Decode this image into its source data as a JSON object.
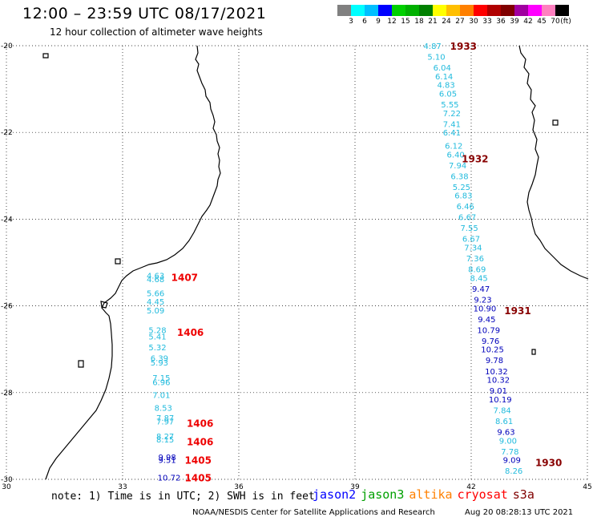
{
  "header": {
    "title": "12:00 – 23:59 UTC 08/17/2021",
    "subtitle": "12 hour collection of altimeter wave heights"
  },
  "legend": {
    "colors": [
      "#808080",
      "#00ffff",
      "#00bfff",
      "#0000ff",
      "#00d000",
      "#00b000",
      "#008000",
      "#ffff00",
      "#ffbf00",
      "#ff8000",
      "#ff0000",
      "#b00000",
      "#800000",
      "#a000a0",
      "#ff00ff",
      "#ff80c0",
      "#000000"
    ],
    "labels": [
      "3",
      "6",
      "9",
      "12",
      "15",
      "18",
      "21",
      "24",
      "27",
      "30",
      "33",
      "36",
      "39",
      "42",
      "45",
      "70",
      "(ft)"
    ]
  },
  "axes": {
    "lat_labels": [
      "-20",
      "-22",
      "-24",
      "-26",
      "-28",
      "-30"
    ],
    "lon_labels": [
      "30",
      "33",
      "36",
      "39",
      "42",
      "45"
    ]
  },
  "colors": {
    "light_blue": "#22bbdd",
    "dark_blue": "#0000bb",
    "red": "#ee0000",
    "dark_red": "#880000"
  },
  "observations": [
    {
      "v": "4.87",
      "c": "light_blue",
      "lon": 41.0,
      "lat": -20.0
    },
    {
      "v": "5.10",
      "c": "light_blue",
      "lon": 41.1,
      "lat": -20.25
    },
    {
      "v": "6.04",
      "c": "light_blue",
      "lon": 41.25,
      "lat": -20.5
    },
    {
      "v": "6.14",
      "c": "light_blue",
      "lon": 41.3,
      "lat": -20.7
    },
    {
      "v": "4.83",
      "c": "light_blue",
      "lon": 41.35,
      "lat": -20.9
    },
    {
      "v": "6.05",
      "c": "light_blue",
      "lon": 41.4,
      "lat": -21.1
    },
    {
      "v": "5.55",
      "c": "light_blue",
      "lon": 41.45,
      "lat": -21.35
    },
    {
      "v": "7.22",
      "c": "light_blue",
      "lon": 41.5,
      "lat": -21.55
    },
    {
      "v": "7.41",
      "c": "light_blue",
      "lon": 41.5,
      "lat": -21.8
    },
    {
      "v": "6.41",
      "c": "light_blue",
      "lon": 41.5,
      "lat": -22.0
    },
    {
      "v": "6.12",
      "c": "light_blue",
      "lon": 41.55,
      "lat": -22.3
    },
    {
      "v": "6.40",
      "c": "light_blue",
      "lon": 41.6,
      "lat": -22.5
    },
    {
      "v": "7.94",
      "c": "light_blue",
      "lon": 41.65,
      "lat": -22.75
    },
    {
      "v": "6.38",
      "c": "light_blue",
      "lon": 41.7,
      "lat": -23.0
    },
    {
      "v": "5.25",
      "c": "light_blue",
      "lon": 41.75,
      "lat": -23.25
    },
    {
      "v": "6.83",
      "c": "light_blue",
      "lon": 41.8,
      "lat": -23.45
    },
    {
      "v": "6.46",
      "c": "light_blue",
      "lon": 41.85,
      "lat": -23.7
    },
    {
      "v": "6.67",
      "c": "light_blue",
      "lon": 41.9,
      "lat": -23.95
    },
    {
      "v": "7.55",
      "c": "light_blue",
      "lon": 41.95,
      "lat": -24.2
    },
    {
      "v": "6.67",
      "c": "light_blue",
      "lon": 42.0,
      "lat": -24.45
    },
    {
      "v": "7.34",
      "c": "light_blue",
      "lon": 42.05,
      "lat": -24.65
    },
    {
      "v": "7.36",
      "c": "light_blue",
      "lon": 42.1,
      "lat": -24.9
    },
    {
      "v": "8.69",
      "c": "light_blue",
      "lon": 42.15,
      "lat": -25.15
    },
    {
      "v": "8.45",
      "c": "light_blue",
      "lon": 42.2,
      "lat": -25.35
    },
    {
      "v": "9.47",
      "c": "dark_blue",
      "lon": 42.25,
      "lat": -25.6
    },
    {
      "v": "9.23",
      "c": "dark_blue",
      "lon": 42.3,
      "lat": -25.85
    },
    {
      "v": "10.90",
      "c": "dark_blue",
      "lon": 42.35,
      "lat": -26.05
    },
    {
      "v": "9.45",
      "c": "dark_blue",
      "lon": 42.4,
      "lat": -26.3
    },
    {
      "v": "10.79",
      "c": "dark_blue",
      "lon": 42.45,
      "lat": -26.55
    },
    {
      "v": "9.76",
      "c": "dark_blue",
      "lon": 42.5,
      "lat": -26.8
    },
    {
      "v": "10.25",
      "c": "dark_blue",
      "lon": 42.55,
      "lat": -27.0
    },
    {
      "v": "9.78",
      "c": "dark_blue",
      "lon": 42.6,
      "lat": -27.25
    },
    {
      "v": "10.32",
      "c": "dark_blue",
      "lon": 42.65,
      "lat": -27.5
    },
    {
      "v": "10.32",
      "c": "dark_blue",
      "lon": 42.7,
      "lat": -27.7
    },
    {
      "v": "9.01",
      "c": "dark_blue",
      "lon": 42.7,
      "lat": -27.95
    },
    {
      "v": "10.19",
      "c": "dark_blue",
      "lon": 42.75,
      "lat": -28.15
    },
    {
      "v": "7.84",
      "c": "light_blue",
      "lon": 42.8,
      "lat": -28.4
    },
    {
      "v": "8.61",
      "c": "light_blue",
      "lon": 42.85,
      "lat": -28.65
    },
    {
      "v": "9.63",
      "c": "dark_blue",
      "lon": 42.9,
      "lat": -28.9
    },
    {
      "v": "9.00",
      "c": "light_blue",
      "lon": 42.95,
      "lat": -29.1
    },
    {
      "v": "7.78",
      "c": "light_blue",
      "lon": 43.0,
      "lat": -29.35
    },
    {
      "v": "9.09",
      "c": "dark_blue",
      "lon": 43.05,
      "lat": -29.55
    },
    {
      "v": "8.26",
      "c": "light_blue",
      "lon": 43.1,
      "lat": -29.8
    },
    {
      "v": "4.63",
      "c": "light_blue",
      "lon": 33.85,
      "lat": -25.3
    },
    {
      "v": "4.68",
      "c": "light_blue",
      "lon": 33.85,
      "lat": -25.38
    },
    {
      "v": "5.66",
      "c": "light_blue",
      "lon": 33.85,
      "lat": -25.7
    },
    {
      "v": "4.45",
      "c": "light_blue",
      "lon": 33.85,
      "lat": -25.9
    },
    {
      "v": "5.09",
      "c": "light_blue",
      "lon": 33.85,
      "lat": -26.1
    },
    {
      "v": "5.28",
      "c": "light_blue",
      "lon": 33.9,
      "lat": -26.55
    },
    {
      "v": "5.41",
      "c": "light_blue",
      "lon": 33.9,
      "lat": -26.7
    },
    {
      "v": "5.32",
      "c": "light_blue",
      "lon": 33.9,
      "lat": -26.95
    },
    {
      "v": "6.39",
      "c": "light_blue",
      "lon": 33.95,
      "lat": -27.2
    },
    {
      "v": "5.93",
      "c": "light_blue",
      "lon": 33.95,
      "lat": -27.3
    },
    {
      "v": "7.15",
      "c": "light_blue",
      "lon": 34.0,
      "lat": -27.65
    },
    {
      "v": "6.96",
      "c": "light_blue",
      "lon": 34.0,
      "lat": -27.75
    },
    {
      "v": "7.01",
      "c": "light_blue",
      "lon": 34.0,
      "lat": -28.05
    },
    {
      "v": "8.53",
      "c": "light_blue",
      "lon": 34.05,
      "lat": -28.35
    },
    {
      "v": "7.87",
      "c": "light_blue",
      "lon": 34.1,
      "lat": -28.58
    },
    {
      "v": "7.97",
      "c": "light_blue",
      "lon": 34.1,
      "lat": -28.66
    },
    {
      "v": "8.27",
      "c": "light_blue",
      "lon": 34.1,
      "lat": -29.0
    },
    {
      "v": "8.15",
      "c": "light_blue",
      "lon": 34.1,
      "lat": -29.08
    },
    {
      "v": "9.98",
      "c": "dark_blue",
      "lon": 34.15,
      "lat": -29.48
    },
    {
      "v": "9.51",
      "c": "dark_blue",
      "lon": 34.15,
      "lat": -29.55
    },
    {
      "v": "10.72",
      "c": "dark_blue",
      "lon": 34.2,
      "lat": -29.95
    }
  ],
  "pass_times": [
    {
      "t": "1933",
      "c": "dark_red",
      "lon": 41.8,
      "lat": -20.0
    },
    {
      "t": "1932",
      "c": "dark_red",
      "lon": 42.1,
      "lat": -22.6
    },
    {
      "t": "1931",
      "c": "dark_red",
      "lon": 43.2,
      "lat": -26.1
    },
    {
      "t": "1930",
      "c": "dark_red",
      "lon": 44.0,
      "lat": -29.6
    },
    {
      "t": "1407",
      "c": "red",
      "lon": 34.6,
      "lat": -25.33
    },
    {
      "t": "1406",
      "c": "red",
      "lon": 34.75,
      "lat": -26.6
    },
    {
      "t": "1406",
      "c": "red",
      "lon": 35.0,
      "lat": -28.7
    },
    {
      "t": "1406",
      "c": "red",
      "lon": 35.0,
      "lat": -29.12
    },
    {
      "t": "1405",
      "c": "red",
      "lon": 34.95,
      "lat": -29.55
    },
    {
      "t": "1405",
      "c": "red",
      "lon": 34.95,
      "lat": -29.95
    }
  ],
  "footer": {
    "note": "note: 1) Time is in UTC; 2) SWH is in feet",
    "satellites": [
      {
        "name": "jason2",
        "color": "#0000ff"
      },
      {
        "name": "jason3",
        "color": "#00a000"
      },
      {
        "name": "altika",
        "color": "#ff8000"
      },
      {
        "name": "cryosat",
        "color": "#ff0000"
      },
      {
        "name": "s3a",
        "color": "#800000"
      }
    ],
    "org": "NOAA/NESDIS Center for Satellite Applications and Research",
    "timestamp": "Aug 20 08:28:13 UTC 2021"
  }
}
